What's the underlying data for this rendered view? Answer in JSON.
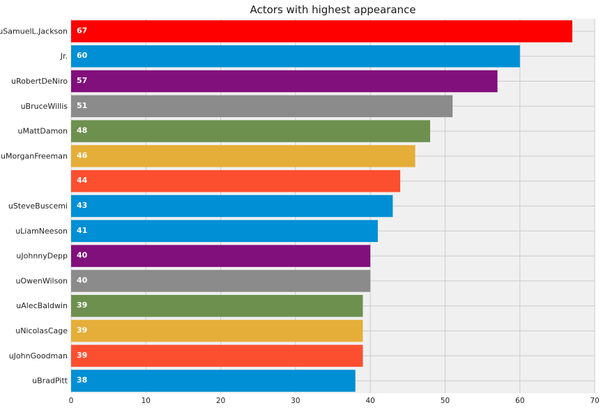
{
  "chart_data": {
    "type": "bar",
    "orientation": "horizontal",
    "title": "Actors with highest appearance",
    "xlabel": "",
    "ylabel": "",
    "xlim": [
      0,
      70
    ],
    "x_ticks": [
      0,
      10,
      20,
      30,
      40,
      50,
      60,
      70
    ],
    "grid": true,
    "categories": [
      "uSamuelL.Jackson",
      "Jr.",
      "uRobertDeNiro",
      "uBruceWillis",
      "uMattDamon",
      "uMorganFreeman",
      "",
      "uSteveBuscemi",
      "uLiamNeeson",
      "uJohnnyDepp",
      "uOwenWilson",
      "uAlecBaldwin",
      "uNicolasCage",
      "uJohnGoodman",
      "uBradPitt"
    ],
    "values": [
      67,
      60,
      57,
      51,
      48,
      46,
      44,
      43,
      41,
      40,
      40,
      39,
      39,
      39,
      38
    ],
    "colors": [
      "#ff0000",
      "#008fd5",
      "#810f7c",
      "#8b8b8b",
      "#6d904f",
      "#e5ae38",
      "#fc4f30",
      "#008fd5",
      "#008fd5",
      "#810f7c",
      "#8b8b8b",
      "#6d904f",
      "#e5ae38",
      "#fc4f30",
      "#008fd5"
    ],
    "plot_background": "#f0f0f0",
    "grid_color": "#cbcbcb"
  }
}
